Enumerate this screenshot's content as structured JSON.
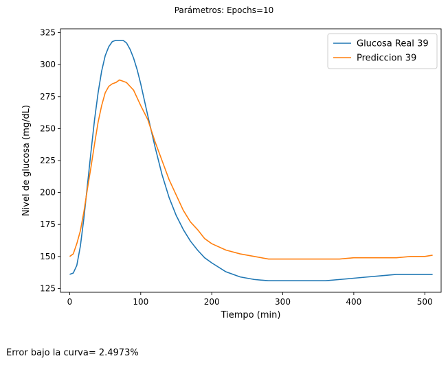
{
  "figure": {
    "suptitle": "Parámetros:  Epochs=10",
    "footer": "Error bajo la curva= 2.4973%"
  },
  "chart_data": {
    "type": "line",
    "title": "",
    "xlabel": "Tiempo (min)",
    "ylabel": "Nivel de glucosa (mg/dL)",
    "xlim": [
      -13,
      523
    ],
    "ylim": [
      122,
      328
    ],
    "xticks": [
      0,
      100,
      200,
      300,
      400,
      500
    ],
    "yticks": [
      125,
      150,
      175,
      200,
      225,
      250,
      275,
      300,
      325
    ],
    "grid": false,
    "legend_position": "top-right",
    "series": [
      {
        "name": "Glucosa Real 39",
        "color": "#1f77b4",
        "x": [
          0,
          5,
          10,
          15,
          20,
          25,
          30,
          35,
          40,
          45,
          50,
          55,
          60,
          65,
          70,
          75,
          80,
          85,
          90,
          95,
          100,
          110,
          120,
          130,
          140,
          150,
          160,
          170,
          180,
          190,
          200,
          220,
          240,
          260,
          280,
          300,
          320,
          340,
          360,
          380,
          400,
          420,
          440,
          460,
          480,
          500,
          511
        ],
        "y": [
          136,
          137,
          143,
          158,
          180,
          206,
          232,
          257,
          278,
          295,
          307,
          314,
          318,
          319,
          319,
          319,
          317,
          312,
          305,
          296,
          285,
          260,
          236,
          214,
          196,
          182,
          171,
          162,
          155,
          149,
          145,
          138,
          134,
          132,
          131,
          131,
          131,
          131,
          131,
          132,
          133,
          134,
          135,
          136,
          136,
          136,
          136
        ]
      },
      {
        "name": "Prediccion 39",
        "color": "#ff7f0e",
        "x": [
          0,
          5,
          10,
          15,
          20,
          25,
          30,
          35,
          40,
          45,
          50,
          55,
          60,
          65,
          70,
          75,
          80,
          85,
          90,
          95,
          100,
          110,
          120,
          130,
          140,
          150,
          160,
          170,
          180,
          190,
          200,
          220,
          240,
          260,
          280,
          300,
          320,
          340,
          360,
          380,
          400,
          420,
          440,
          460,
          480,
          500,
          511
        ],
        "y": [
          150,
          152,
          160,
          170,
          185,
          203,
          220,
          238,
          255,
          268,
          278,
          283,
          285,
          286,
          288,
          287,
          286,
          283,
          280,
          274,
          268,
          257,
          240,
          225,
          210,
          198,
          186,
          177,
          171,
          164,
          160,
          155,
          152,
          150,
          148,
          148,
          148,
          148,
          148,
          148,
          149,
          149,
          149,
          149,
          150,
          150,
          151
        ]
      }
    ]
  }
}
